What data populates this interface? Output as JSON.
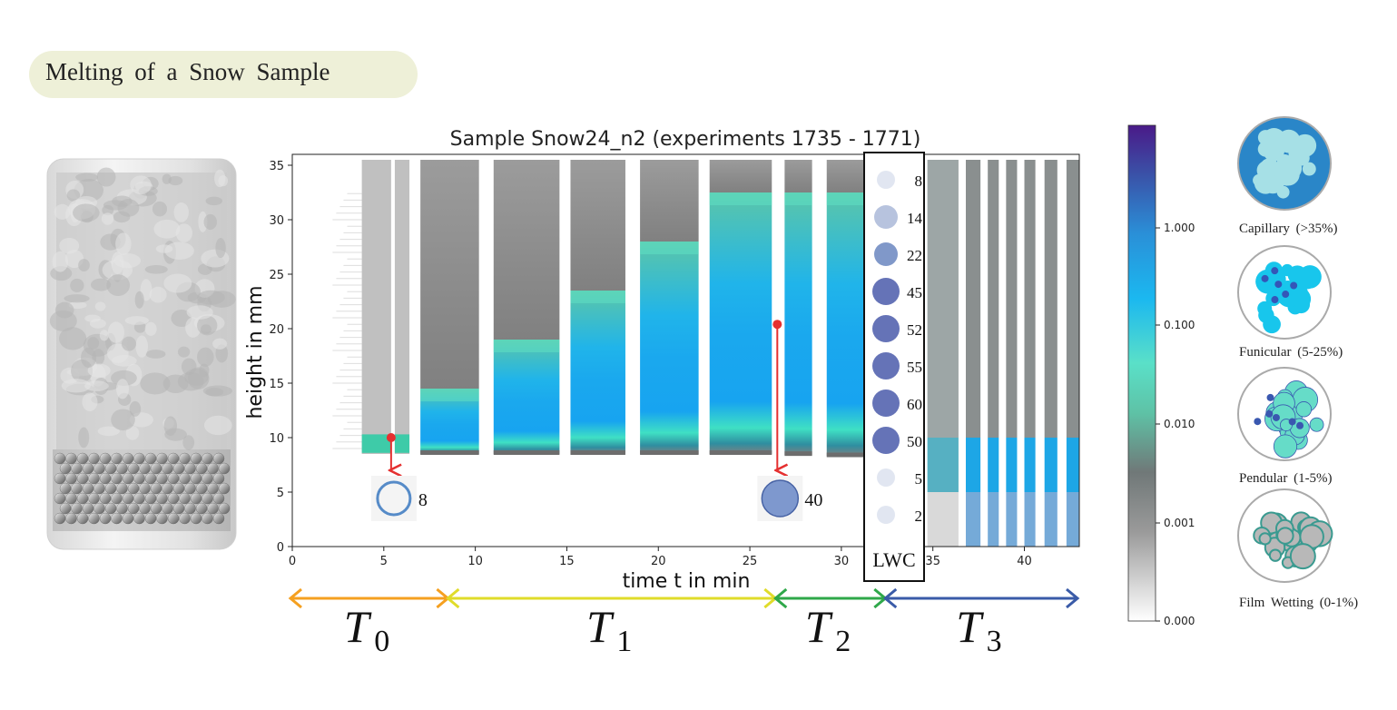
{
  "header": {
    "title": "Melting of a Snow Sample"
  },
  "chart_data": {
    "type": "heatmap",
    "title": "Sample Snow24_n2 (experiments 1735 - 1771)",
    "xlabel": "time t in min",
    "ylabel": "height in mm",
    "xlim": [
      0,
      43
    ],
    "ylim": [
      0,
      36
    ],
    "xticks": [
      0,
      5,
      10,
      15,
      20,
      25,
      30,
      35,
      40
    ],
    "yticks": [
      0,
      5,
      10,
      15,
      20,
      25,
      30,
      35
    ],
    "colorbar": {
      "scale": "log",
      "ticks": [
        "1.000",
        "0.100",
        "0.010",
        "0.001",
        "0.000"
      ]
    },
    "lwc_column": {
      "label": "LWC",
      "values": [
        "8",
        "14",
        "22",
        "45",
        "52",
        "55",
        "60",
        "50",
        "5",
        "2"
      ]
    },
    "insets": [
      {
        "time": 5.4,
        "height": 10,
        "value": "8"
      },
      {
        "time": 26.5,
        "height": 20.4,
        "value": "40"
      }
    ],
    "phases": [
      {
        "name": "T",
        "sub": "0",
        "start": 0,
        "end": 8.6,
        "color": "#f5a020"
      },
      {
        "name": "T",
        "sub": "1",
        "start": 8.6,
        "end": 26.5,
        "color": "#e0dc2a"
      },
      {
        "name": "T",
        "sub": "2",
        "start": 26.5,
        "end": 32.5,
        "color": "#2fa84a"
      },
      {
        "name": "T",
        "sub": "3",
        "start": 32.5,
        "end": 43,
        "color": "#3a5ba8"
      }
    ],
    "regimes": [
      {
        "label": "Capillary",
        "range": "(>35%)"
      },
      {
        "label": "Funicular",
        "range": "(5-25%)"
      },
      {
        "label": "Pendular",
        "range": "(1-5%)"
      },
      {
        "label": "Film Wetting",
        "range": "(0-1%)"
      }
    ]
  }
}
